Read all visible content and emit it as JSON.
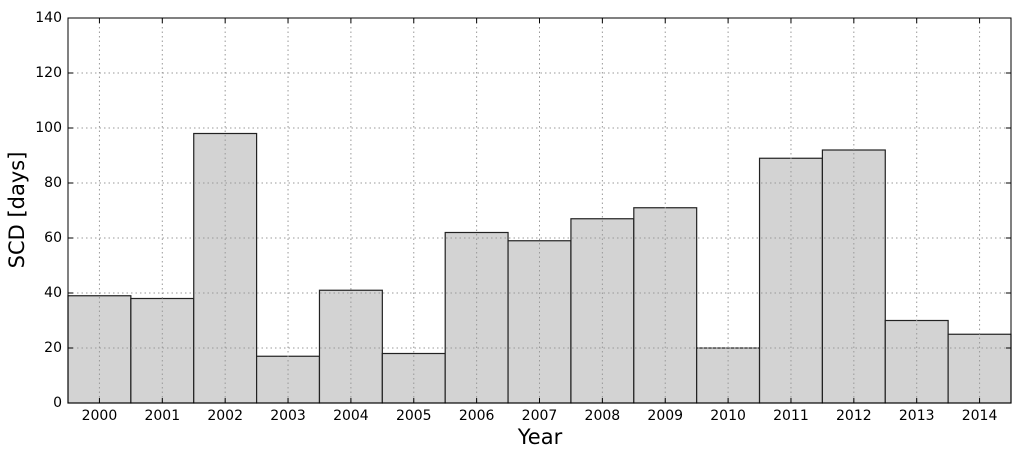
{
  "chart_data": {
    "type": "bar",
    "x_label": "Year",
    "y_label": "SCD [days]",
    "categories": [
      "2000",
      "2001",
      "2002",
      "2003",
      "2004",
      "2005",
      "2006",
      "2007",
      "2008",
      "2009",
      "2010",
      "2011",
      "2012",
      "2013",
      "2014"
    ],
    "values": [
      39,
      38,
      98,
      17,
      41,
      18,
      62,
      59,
      67,
      71,
      20,
      89,
      92,
      30,
      25
    ],
    "color": "#d3d3d3",
    "ylim": [
      0,
      140
    ],
    "yticks": [
      0,
      20,
      40,
      60,
      80,
      100,
      120,
      140
    ],
    "grid": true
  }
}
